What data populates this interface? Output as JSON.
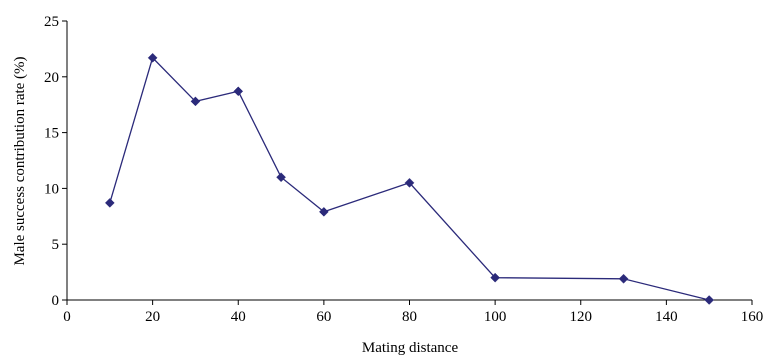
{
  "chart_data": {
    "type": "line",
    "title": "",
    "xlabel": "Mating distance",
    "ylabel": "Male success contribution rate (%)",
    "xlim": [
      0,
      160
    ],
    "ylim": [
      0,
      25
    ],
    "x_ticks": [
      0,
      20,
      40,
      60,
      80,
      100,
      120,
      140,
      160
    ],
    "y_ticks": [
      0,
      5,
      10,
      15,
      20,
      25
    ],
    "grid": false,
    "legend": "none",
    "series": [
      {
        "x": [
          10,
          20,
          30,
          40,
          50,
          60,
          80,
          100,
          130,
          150
        ],
        "y": [
          8.7,
          21.7,
          17.8,
          18.7,
          11.0,
          7.9,
          10.5,
          2.0,
          1.9,
          0.0
        ],
        "color": "#2b2a7a",
        "marker": "diamond"
      }
    ]
  }
}
